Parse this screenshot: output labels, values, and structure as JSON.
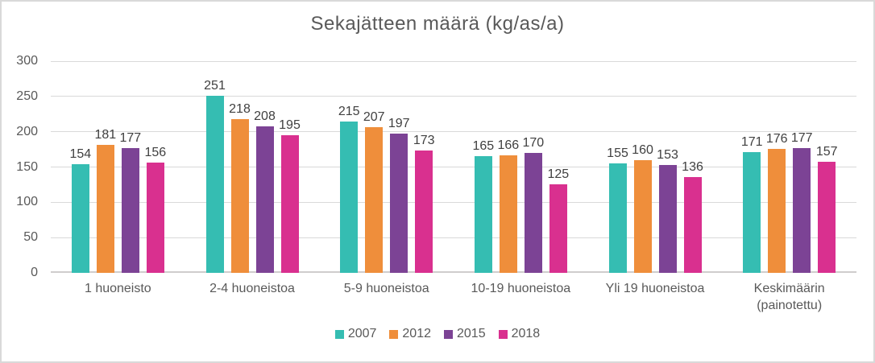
{
  "chart_data": {
    "type": "bar",
    "title": "Sekajätteen määrä (kg/as/a)",
    "categories": [
      "1 huoneisto",
      "2-4 huoneistoa",
      "5-9 huoneistoa",
      "10-19 huoneistoa",
      "Yli 19 huoneistoa",
      "Keskimäärin (painotettu)"
    ],
    "series": [
      {
        "name": "2007",
        "color": "#35BDB2",
        "values": [
          154,
          251,
          215,
          165,
          155,
          171
        ]
      },
      {
        "name": "2012",
        "color": "#EF8E3B",
        "values": [
          181,
          218,
          207,
          166,
          160,
          176
        ]
      },
      {
        "name": "2015",
        "color": "#7C4395",
        "values": [
          177,
          208,
          197,
          170,
          153,
          177
        ]
      },
      {
        "name": "2018",
        "color": "#D9308F",
        "values": [
          156,
          195,
          173,
          125,
          136,
          157
        ]
      }
    ],
    "xlabel": "",
    "ylabel": "",
    "ylim": [
      0,
      300
    ],
    "yticks": [
      0,
      50,
      100,
      150,
      200,
      250,
      300
    ],
    "grid": true,
    "data_labels": true,
    "legend_position": "bottom"
  },
  "colors": {
    "title_text": "#595959",
    "axis_text": "#595959",
    "data_label_text": "#404040",
    "gridline": "#D9D9D9",
    "axis_line": "#CFCDCD",
    "frame_border": "#D9D9D9",
    "background": "#FFFFFF"
  }
}
